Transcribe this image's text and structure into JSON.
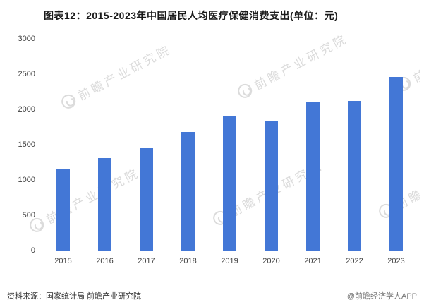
{
  "footer": {
    "source": "资料来源：国家统计局 前瞻产业研究院",
    "brand": "@前瞻经济学人APP"
  },
  "watermark": {
    "text": "前瞻产业研究院",
    "logo": "qianzhan-circle-logo"
  },
  "colors": {
    "bar": "#4377d6",
    "title_text": "#1a1a1a",
    "axis_text": "#404040",
    "watermark": "#cfcfcf"
  },
  "chart_data": {
    "type": "bar",
    "title": "图表12：2015-2023年中国居民人均医疗保健消费支出(单位：元)",
    "categories": [
      "2015",
      "2016",
      "2017",
      "2018",
      "2019",
      "2020",
      "2021",
      "2022",
      "2023"
    ],
    "values": [
      1165,
      1310,
      1450,
      1685,
      1900,
      1845,
      2115,
      2120,
      2460
    ],
    "xlabel": "",
    "ylabel": "",
    "ylim": [
      0,
      3000
    ],
    "yticks": [
      0,
      500,
      1000,
      1500,
      2000,
      2500,
      3000
    ],
    "grid": false,
    "legend": "none",
    "bar_color": "#4377d6"
  }
}
